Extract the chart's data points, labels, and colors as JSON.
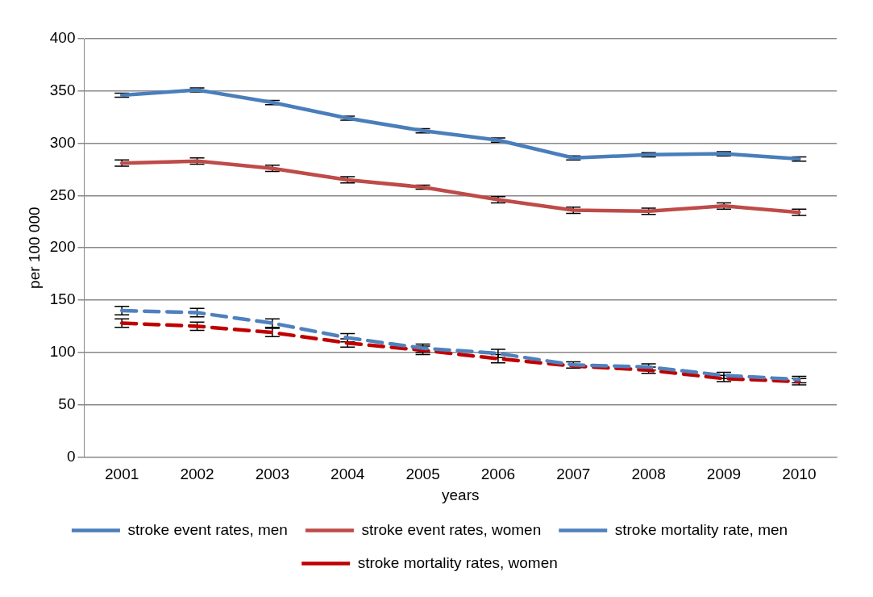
{
  "chart_data": {
    "type": "line",
    "xlabel": "years",
    "ylabel": "per 100 000",
    "categories": [
      "2001",
      "2002",
      "2003",
      "2004",
      "2005",
      "2006",
      "2007",
      "2008",
      "2009",
      "2010"
    ],
    "ylim": [
      0,
      400
    ],
    "yticks": [
      0,
      50,
      100,
      150,
      200,
      250,
      300,
      350,
      400
    ],
    "grid": "y",
    "legend": "bottom",
    "marker": "none",
    "series": [
      {
        "name": "stroke event rates, men",
        "color": "#4a7ebb",
        "line_style": "solid",
        "values": [
          346,
          351,
          339,
          324,
          312,
          303,
          286,
          289,
          290,
          285
        ],
        "errors": [
          2,
          2,
          2,
          2,
          2,
          2,
          2,
          2,
          2,
          2
        ]
      },
      {
        "name": "stroke event rates, women",
        "color": "#be4b48",
        "line_style": "solid",
        "values": [
          281,
          283,
          276,
          265,
          258,
          246,
          236,
          235,
          240,
          234
        ],
        "errors": [
          3,
          3,
          3,
          3,
          2,
          3,
          3,
          3,
          3,
          3
        ]
      },
      {
        "name": "stroke mortality rate, men",
        "color": "#4f81bd",
        "line_style": "dashed",
        "values": [
          140,
          138,
          128,
          114,
          104,
          99,
          88,
          86,
          78,
          74
        ],
        "errors": [
          4,
          4,
          4,
          4,
          4,
          4,
          3,
          3,
          3,
          3
        ]
      },
      {
        "name": "stroke mortality rates, women",
        "color": "#c00000",
        "line_style": "dashed",
        "values": [
          128,
          125,
          119,
          109,
          102,
          94,
          87,
          83,
          75,
          72
        ],
        "errors": [
          4,
          4,
          4,
          4,
          4,
          4,
          null,
          3,
          3,
          3
        ]
      }
    ]
  }
}
